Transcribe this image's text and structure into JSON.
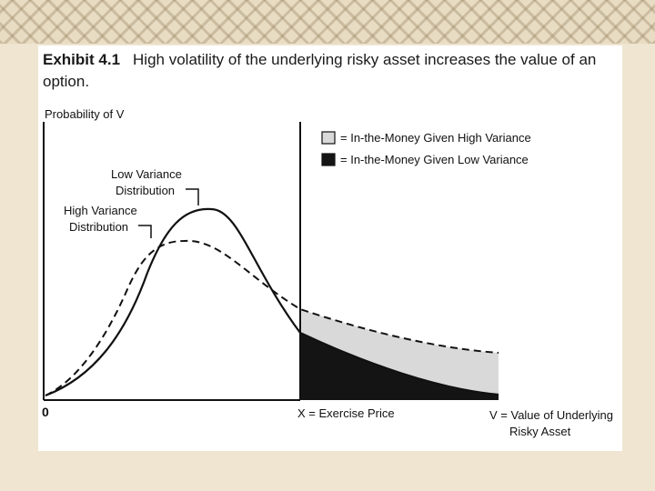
{
  "title": {
    "exhibit": "Exhibit 4.1",
    "text": "High volatility of the underlying risky asset increases the value of an option."
  },
  "axes": {
    "ylabel": "Probability of V",
    "origin_label": "0",
    "x_marker_label": "X = Exercise Price",
    "xlabel_line1": "V = Value of Underlying",
    "xlabel_line2": "Risky Asset"
  },
  "labels": {
    "low_variance_line1": "Low Variance",
    "low_variance_line2": "Distribution",
    "high_variance_line1": "High Variance",
    "high_variance_line2": "Distribution"
  },
  "legend": {
    "high_variance_item": "= In-the-Money Given High Variance",
    "low_variance_item": "= In-the-Money Given Low Variance"
  },
  "colors": {
    "curve": "#111111",
    "high_fill": "#d9d9d9",
    "low_fill": "#141414",
    "border": "#e8dcc3"
  }
}
